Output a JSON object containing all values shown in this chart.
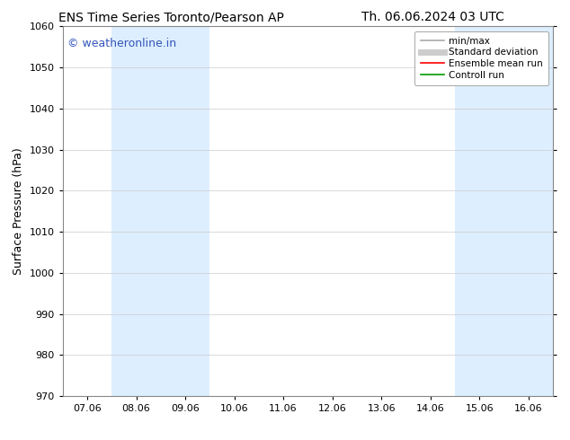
{
  "title_left": "ENS Time Series Toronto/Pearson AP",
  "title_right": "Th. 06.06.2024 03 UTC",
  "ylabel": "Surface Pressure (hPa)",
  "ylim": [
    970,
    1060
  ],
  "yticks": [
    970,
    980,
    990,
    1000,
    1010,
    1020,
    1030,
    1040,
    1050,
    1060
  ],
  "xtick_labels": [
    "07.06",
    "08.06",
    "09.06",
    "10.06",
    "11.06",
    "12.06",
    "13.06",
    "14.06",
    "15.06",
    "16.06"
  ],
  "xtick_positions": [
    0,
    1,
    2,
    3,
    4,
    5,
    6,
    7,
    8,
    9
  ],
  "xlim": [
    -0.5,
    9.5
  ],
  "shade_regions": [
    {
      "x_start": 0.5,
      "x_end": 2.5,
      "color": "#ddeeff"
    },
    {
      "x_start": 7.5,
      "x_end": 9.5,
      "color": "#ddeeff"
    }
  ],
  "watermark": "© weatheronline.in",
  "watermark_color": "#3355bb",
  "background_color": "#ffffff",
  "grid_color": "#cccccc",
  "legend_items": [
    {
      "label": "min/max",
      "color": "#aaaaaa",
      "lw": 1.2
    },
    {
      "label": "Standard deviation",
      "color": "#cccccc",
      "lw": 5
    },
    {
      "label": "Ensemble mean run",
      "color": "#ff0000",
      "lw": 1.2
    },
    {
      "label": "Controll run",
      "color": "#009900",
      "lw": 1.2
    }
  ],
  "title_fontsize": 10,
  "ylabel_fontsize": 9,
  "tick_fontsize": 8,
  "watermark_fontsize": 9,
  "legend_fontsize": 7.5
}
